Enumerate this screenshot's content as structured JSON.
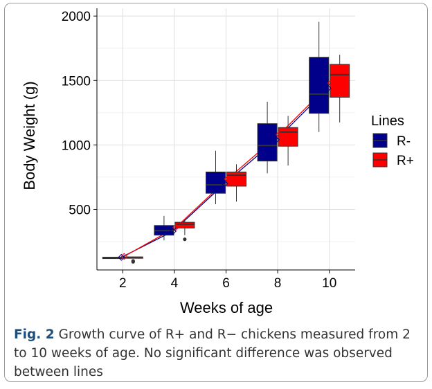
{
  "chart_data": {
    "type": "box",
    "xlabel": "Weeks of age",
    "ylabel": "Body Weight (g)",
    "x_categories": [
      "2",
      "4",
      "6",
      "8",
      "10"
    ],
    "y_ticks": [
      500,
      1000,
      1500,
      2000
    ],
    "ylim": [
      30,
      2060
    ],
    "grid": true,
    "legend": {
      "title": "Lines",
      "placement": "right"
    },
    "series": [
      {
        "name": "R-",
        "color": "#00008b",
        "boxes": [
          {
            "x": "2",
            "min": 120,
            "q1": 123,
            "median": 126,
            "q3": 129,
            "max": 132,
            "outliers": []
          },
          {
            "x": "4",
            "min": 260,
            "q1": 300,
            "median": 335,
            "q3": 375,
            "max": 450,
            "outliers": []
          },
          {
            "x": "6",
            "min": 540,
            "q1": 625,
            "median": 690,
            "q3": 790,
            "max": 955,
            "outliers": []
          },
          {
            "x": "8",
            "min": 780,
            "q1": 875,
            "median": 995,
            "q3": 1165,
            "max": 1335,
            "outliers": []
          },
          {
            "x": "10",
            "min": 1100,
            "q1": 1245,
            "median": 1395,
            "q3": 1680,
            "max": 1955,
            "outliers": []
          }
        ],
        "trend": [
          128,
          330,
          700,
          1040,
          1440
        ]
      },
      {
        "name": "R+",
        "color": "#ff0000",
        "boxes": [
          {
            "x": "2",
            "min": 122,
            "q1": 125,
            "median": 128,
            "q3": 131,
            "max": 134,
            "outliers": [
              100,
              93
            ]
          },
          {
            "x": "4",
            "min": 300,
            "q1": 355,
            "median": 385,
            "q3": 400,
            "max": 420,
            "outliers": [
              268
            ]
          },
          {
            "x": "6",
            "min": 560,
            "q1": 680,
            "median": 765,
            "q3": 790,
            "max": 850,
            "outliers": []
          },
          {
            "x": "8",
            "min": 840,
            "q1": 990,
            "median": 1100,
            "q3": 1135,
            "max": 1225,
            "outliers": []
          },
          {
            "x": "10",
            "min": 1175,
            "q1": 1370,
            "median": 1545,
            "q3": 1625,
            "max": 1700,
            "outliers": []
          }
        ],
        "trend": [
          135,
          360,
          735,
          1080,
          1480
        ]
      }
    ]
  },
  "caption": {
    "label": "Fig. 2",
    "text": "Growth curve of R+ and R− chickens measured from 2 to 10 weeks of age. No significant difference was observed between lines"
  }
}
